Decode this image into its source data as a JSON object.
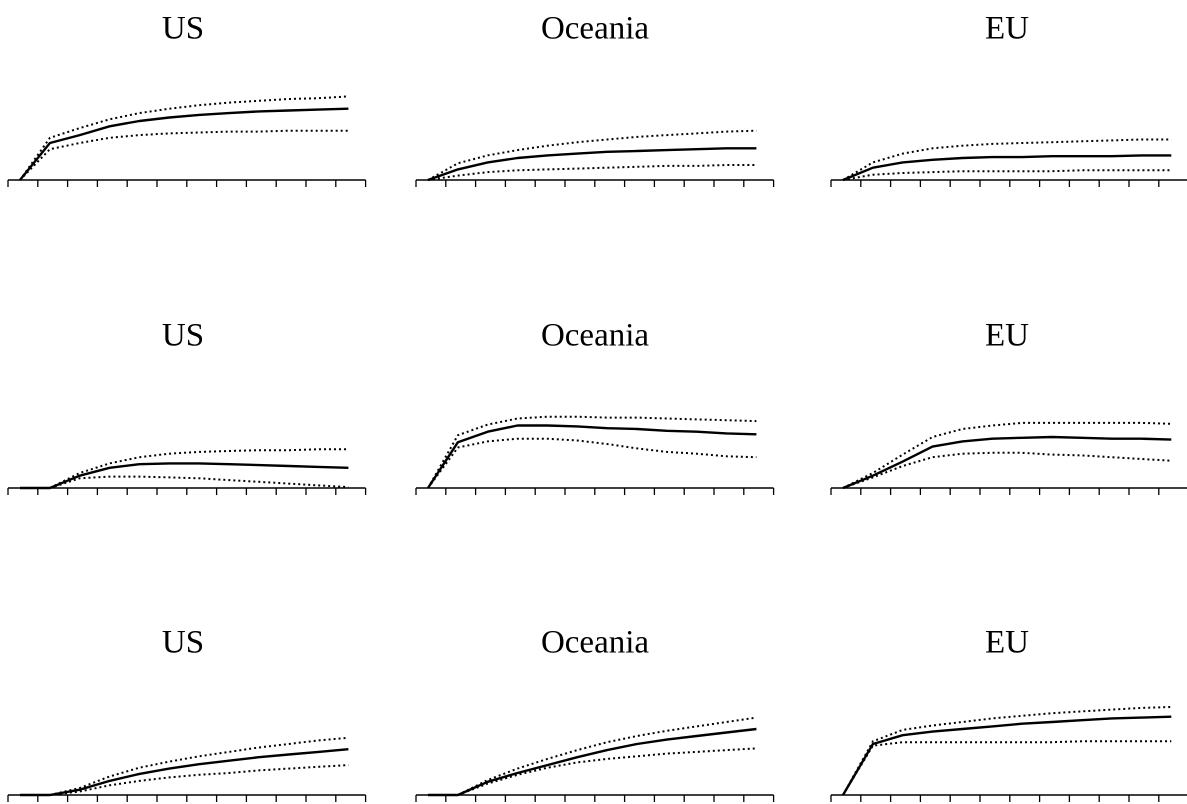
{
  "chart_data": [
    {
      "type": "line",
      "title": "US",
      "x": [
        0,
        1,
        2,
        3,
        4,
        5,
        6,
        7,
        8,
        9,
        10,
        11
      ],
      "ylim": [
        0,
        1
      ],
      "series": [
        {
          "style": "solid",
          "values": [
            0,
            0.42,
            0.51,
            0.61,
            0.67,
            0.71,
            0.74,
            0.76,
            0.78,
            0.79,
            0.8,
            0.81
          ]
        },
        {
          "style": "dotted",
          "values": [
            0,
            0.48,
            0.59,
            0.69,
            0.76,
            0.81,
            0.85,
            0.88,
            0.9,
            0.92,
            0.93,
            0.95
          ]
        },
        {
          "style": "dotted",
          "values": [
            0,
            0.35,
            0.42,
            0.48,
            0.51,
            0.53,
            0.54,
            0.55,
            0.55,
            0.56,
            0.56,
            0.56
          ]
        }
      ]
    },
    {
      "type": "line",
      "title": "Oceania",
      "x": [
        0,
        1,
        2,
        3,
        4,
        5,
        6,
        7,
        8,
        9,
        10,
        11
      ],
      "ylim": [
        0,
        1
      ],
      "series": [
        {
          "style": "solid",
          "values": [
            0,
            0.12,
            0.2,
            0.25,
            0.28,
            0.3,
            0.32,
            0.33,
            0.34,
            0.35,
            0.36,
            0.36
          ]
        },
        {
          "style": "dotted",
          "values": [
            0,
            0.19,
            0.28,
            0.34,
            0.39,
            0.43,
            0.46,
            0.49,
            0.51,
            0.53,
            0.55,
            0.56
          ]
        },
        {
          "style": "dotted",
          "values": [
            0,
            0.05,
            0.09,
            0.11,
            0.12,
            0.13,
            0.14,
            0.15,
            0.16,
            0.16,
            0.17,
            0.17
          ]
        }
      ]
    },
    {
      "type": "line",
      "title": "EU",
      "x": [
        0,
        1,
        2,
        3,
        4,
        5,
        6,
        7,
        8,
        9,
        10,
        11
      ],
      "ylim": [
        0,
        1
      ],
      "series": [
        {
          "style": "solid",
          "values": [
            0,
            0.14,
            0.2,
            0.23,
            0.25,
            0.26,
            0.26,
            0.27,
            0.27,
            0.27,
            0.28,
            0.28
          ]
        },
        {
          "style": "dotted",
          "values": [
            0,
            0.2,
            0.3,
            0.36,
            0.39,
            0.41,
            0.42,
            0.43,
            0.44,
            0.45,
            0.46,
            0.46
          ]
        },
        {
          "style": "dotted",
          "values": [
            0,
            0.06,
            0.08,
            0.09,
            0.1,
            0.1,
            0.1,
            0.1,
            0.11,
            0.11,
            0.11,
            0.11
          ]
        }
      ]
    },
    {
      "type": "line",
      "title": "US",
      "x": [
        0,
        1,
        2,
        3,
        4,
        5,
        6,
        7,
        8,
        9,
        10,
        11
      ],
      "ylim": [
        0,
        1
      ],
      "series": [
        {
          "style": "solid",
          "values": [
            0,
            0,
            0.14,
            0.23,
            0.27,
            0.28,
            0.28,
            0.27,
            0.26,
            0.25,
            0.24,
            0.23
          ]
        },
        {
          "style": "dotted",
          "values": [
            0,
            0,
            0.17,
            0.28,
            0.35,
            0.39,
            0.41,
            0.42,
            0.43,
            0.43,
            0.44,
            0.44
          ]
        },
        {
          "style": "dotted",
          "values": [
            0,
            0,
            0.11,
            0.13,
            0.13,
            0.12,
            0.11,
            0.09,
            0.07,
            0.05,
            0.03,
            0.01
          ]
        }
      ]
    },
    {
      "type": "line",
      "title": "Oceania",
      "x": [
        0,
        1,
        2,
        3,
        4,
        5,
        6,
        7,
        8,
        9,
        10,
        11
      ],
      "ylim": [
        0,
        1
      ],
      "series": [
        {
          "style": "solid",
          "values": [
            0,
            0.52,
            0.64,
            0.71,
            0.71,
            0.7,
            0.68,
            0.67,
            0.65,
            0.64,
            0.62,
            0.61
          ]
        },
        {
          "style": "dotted",
          "values": [
            0,
            0.6,
            0.72,
            0.79,
            0.81,
            0.81,
            0.8,
            0.8,
            0.79,
            0.78,
            0.77,
            0.76
          ]
        },
        {
          "style": "dotted",
          "values": [
            0,
            0.46,
            0.53,
            0.56,
            0.56,
            0.54,
            0.5,
            0.45,
            0.41,
            0.39,
            0.36,
            0.35
          ]
        }
      ]
    },
    {
      "type": "line",
      "title": "EU",
      "x": [
        0,
        1,
        2,
        3,
        4,
        5,
        6,
        7,
        8,
        9,
        10,
        11
      ],
      "ylim": [
        0,
        1
      ],
      "series": [
        {
          "style": "solid",
          "values": [
            0,
            0.14,
            0.3,
            0.47,
            0.53,
            0.56,
            0.57,
            0.58,
            0.57,
            0.56,
            0.56,
            0.55
          ]
        },
        {
          "style": "dotted",
          "values": [
            0,
            0.17,
            0.38,
            0.58,
            0.67,
            0.71,
            0.74,
            0.74,
            0.74,
            0.74,
            0.74,
            0.73
          ]
        },
        {
          "style": "dotted",
          "values": [
            0,
            0.12,
            0.25,
            0.35,
            0.39,
            0.4,
            0.4,
            0.38,
            0.37,
            0.35,
            0.33,
            0.31
          ]
        }
      ]
    },
    {
      "type": "line",
      "title": "US",
      "x": [
        0,
        1,
        2,
        3,
        4,
        5,
        6,
        7,
        8,
        9,
        10,
        11
      ],
      "ylim": [
        0,
        1
      ],
      "series": [
        {
          "style": "solid",
          "values": [
            0,
            0,
            0.06,
            0.16,
            0.24,
            0.3,
            0.35,
            0.39,
            0.43,
            0.46,
            0.49,
            0.52
          ]
        },
        {
          "style": "dotted",
          "values": [
            0,
            0,
            0.08,
            0.21,
            0.31,
            0.38,
            0.44,
            0.49,
            0.54,
            0.58,
            0.62,
            0.65
          ]
        },
        {
          "style": "dotted",
          "values": [
            0,
            0,
            0.04,
            0.11,
            0.16,
            0.2,
            0.23,
            0.25,
            0.28,
            0.3,
            0.32,
            0.34
          ]
        }
      ]
    },
    {
      "type": "line",
      "title": "Oceania",
      "x": [
        0,
        1,
        2,
        3,
        4,
        5,
        6,
        7,
        8,
        9,
        10,
        11
      ],
      "ylim": [
        0,
        1
      ],
      "series": [
        {
          "style": "solid",
          "values": [
            0,
            0,
            0.15,
            0.25,
            0.34,
            0.43,
            0.51,
            0.58,
            0.63,
            0.67,
            0.71,
            0.75
          ]
        },
        {
          "style": "dotted",
          "values": [
            0,
            0,
            0.17,
            0.3,
            0.41,
            0.51,
            0.6,
            0.67,
            0.73,
            0.78,
            0.83,
            0.88
          ]
        },
        {
          "style": "dotted",
          "values": [
            0,
            0,
            0.13,
            0.23,
            0.31,
            0.37,
            0.41,
            0.44,
            0.47,
            0.49,
            0.51,
            0.53
          ]
        }
      ]
    },
    {
      "type": "line",
      "title": "EU",
      "x": [
        0,
        1,
        2,
        3,
        4,
        5,
        6,
        7,
        8,
        9,
        10,
        11
      ],
      "ylim": [
        0,
        1
      ],
      "series": [
        {
          "style": "solid",
          "values": [
            0,
            0.58,
            0.68,
            0.72,
            0.75,
            0.78,
            0.81,
            0.83,
            0.85,
            0.87,
            0.88,
            0.89
          ]
        },
        {
          "style": "dotted",
          "values": [
            0,
            0.61,
            0.74,
            0.79,
            0.83,
            0.87,
            0.9,
            0.93,
            0.95,
            0.97,
            0.99,
            1.0
          ]
        },
        {
          "style": "dotted",
          "values": [
            0,
            0.56,
            0.6,
            0.6,
            0.6,
            0.6,
            0.6,
            0.6,
            0.61,
            0.61,
            0.61,
            0.61
          ]
        }
      ]
    }
  ]
}
